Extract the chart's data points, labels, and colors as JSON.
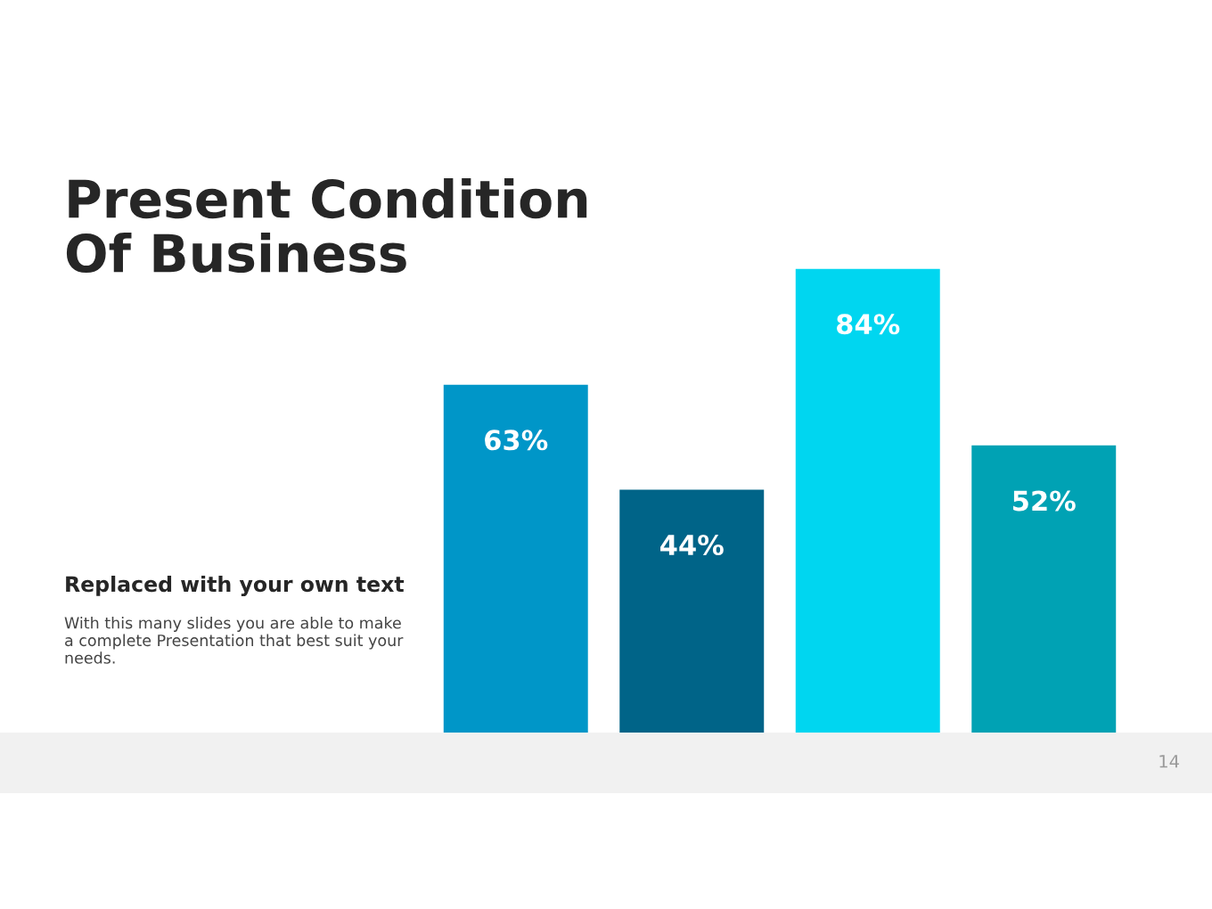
{
  "chart_data": {
    "type": "bar",
    "title": "Present Condition\nOf Business",
    "subtitle": "Replaced with your own text",
    "categories": [
      null,
      null,
      null,
      null
    ],
    "values": [
      63,
      44,
      84,
      52
    ],
    "colors": [
      "#0096c8",
      "#006488",
      "#00d6f0",
      "#00a2b4"
    ],
    "value_labels": [
      "63%",
      "44%",
      "84%",
      "52%"
    ],
    "annotations": [
      "With this many slides you are able to make a complete Presentation that best suit your needs.",
      "14"
    ]
  }
}
